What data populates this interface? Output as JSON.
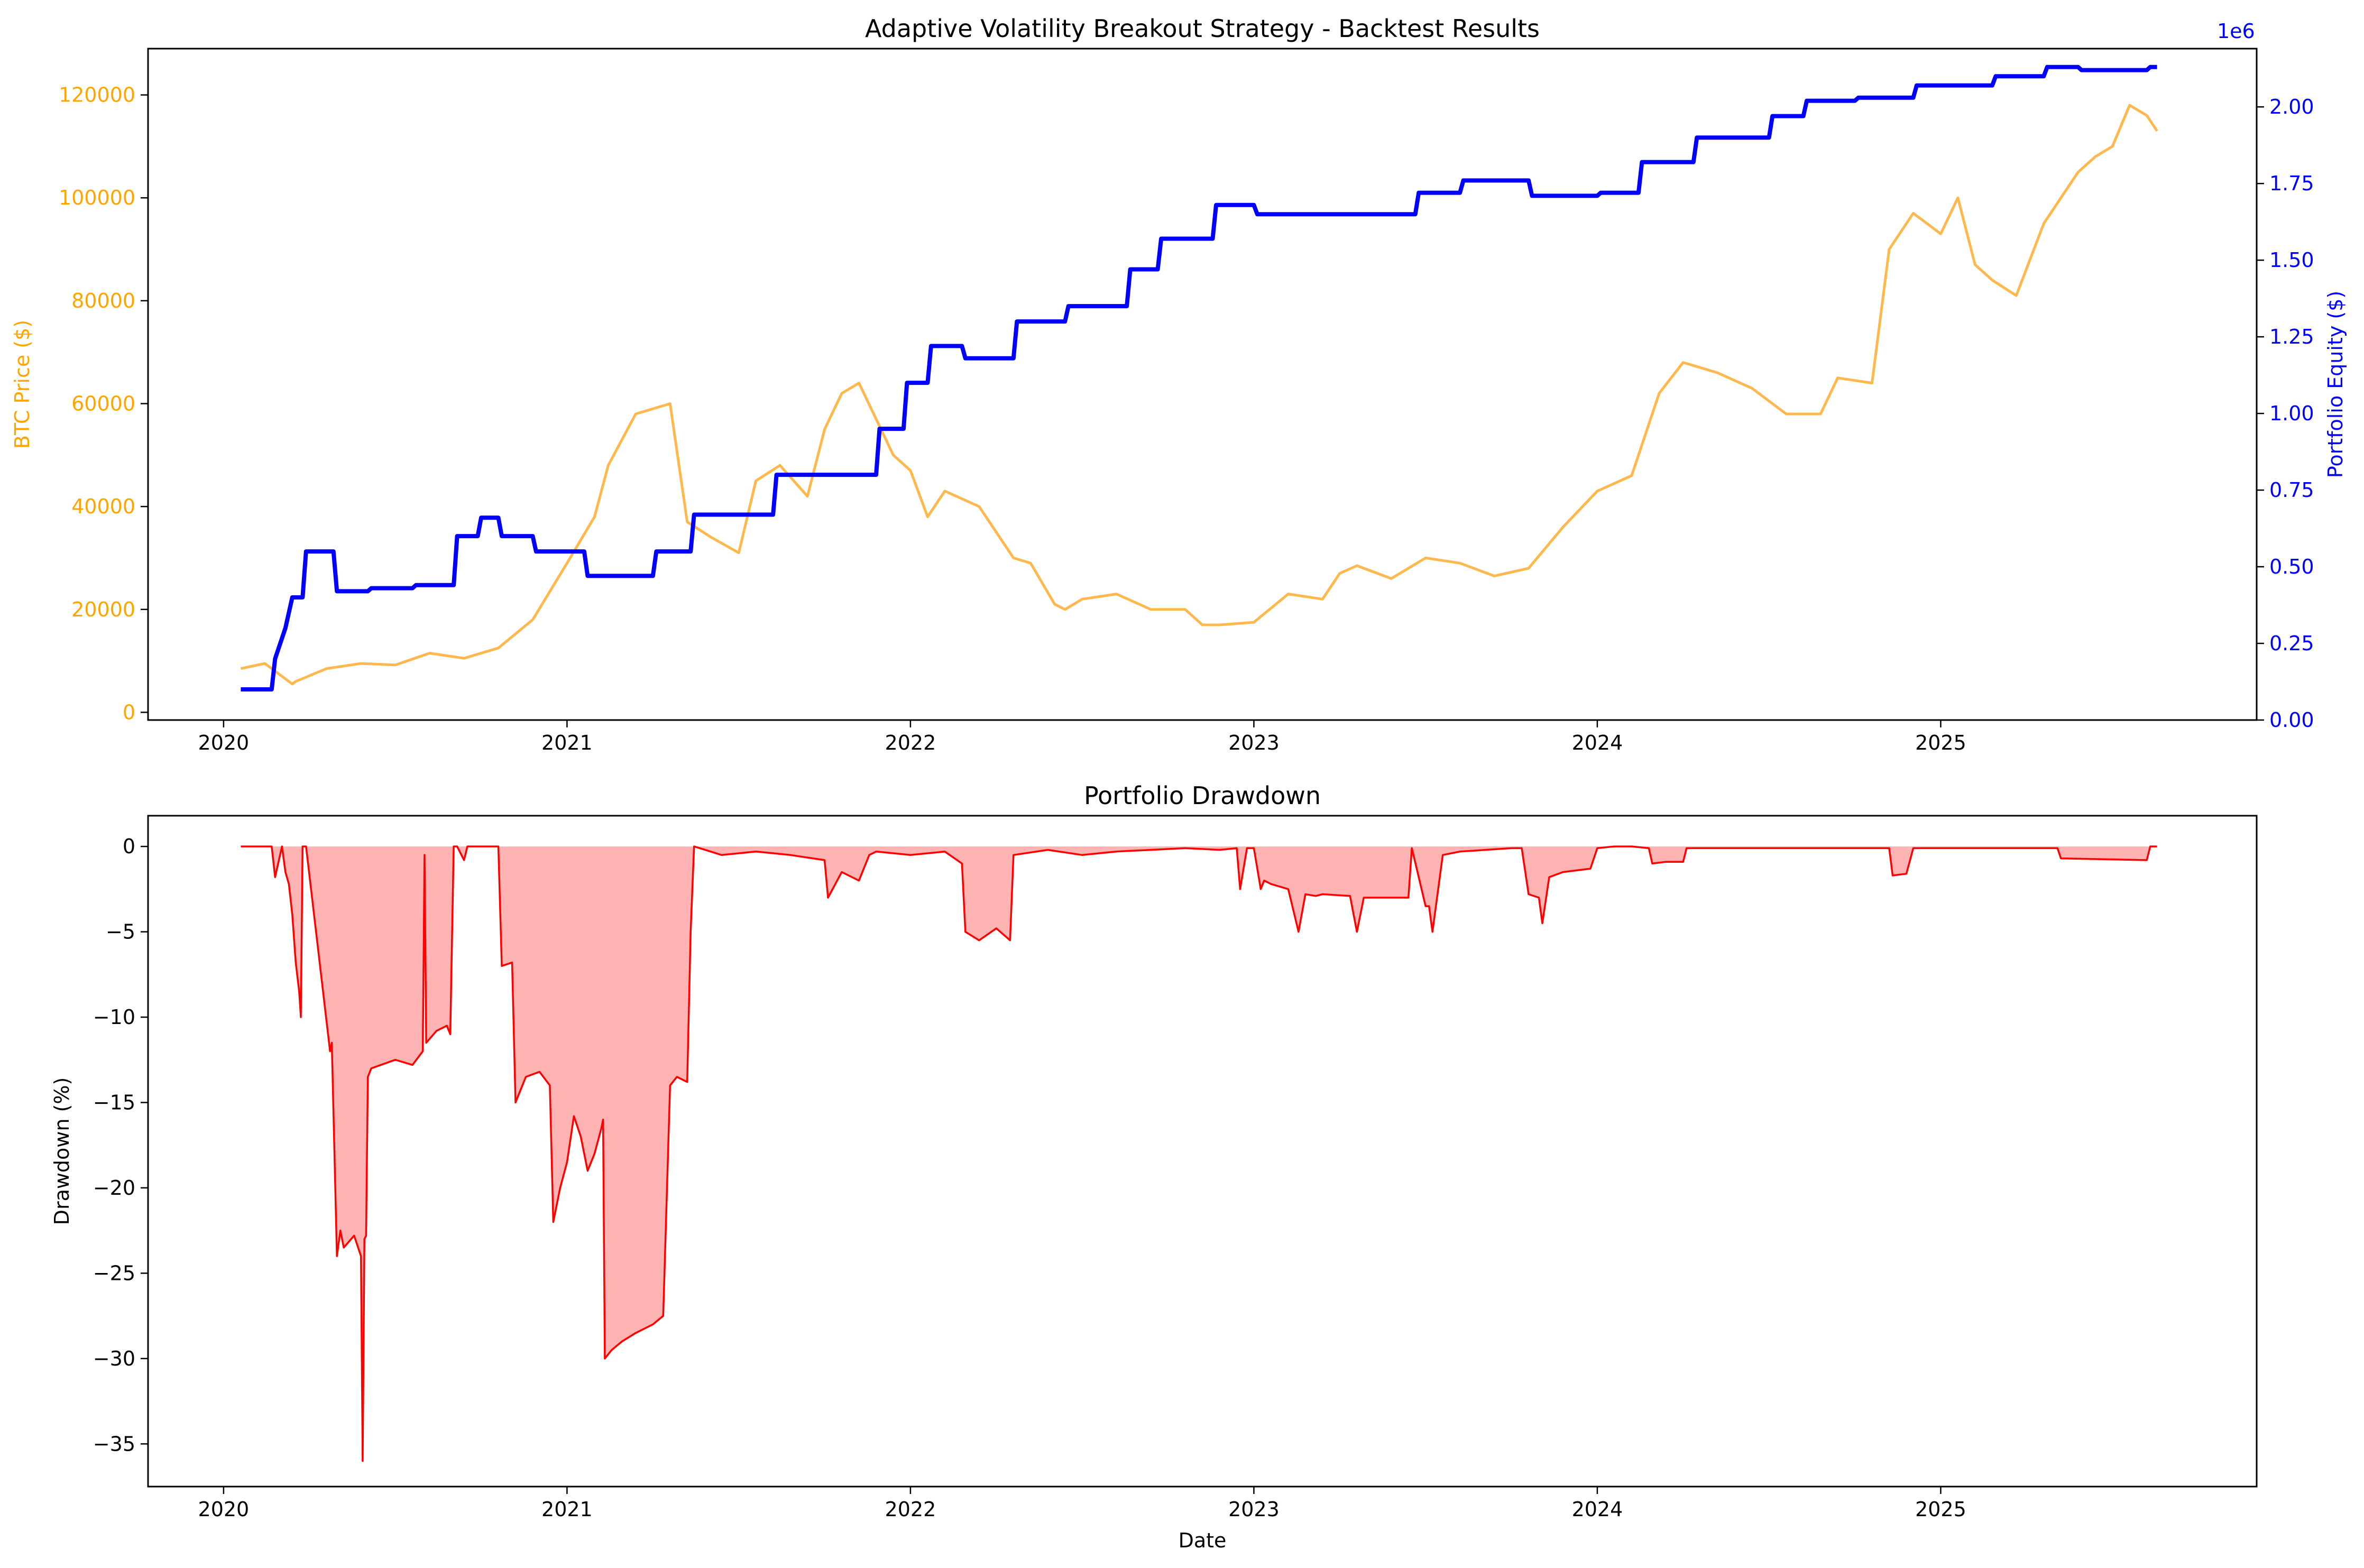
{
  "chart_data": [
    {
      "type": "line",
      "title": "Adaptive Volatility Breakout Strategy - Backtest Results",
      "xlabel": "",
      "x_ticks": [
        "2020",
        "2021",
        "2022",
        "2023",
        "2024",
        "2025"
      ],
      "x_range": [
        2019.78,
        2025.92
      ],
      "y_left": {
        "label": "BTC Price ($)",
        "color": "#ffa500",
        "ylim": [
          -1500,
          129000
        ],
        "ticks": [
          0,
          20000,
          40000,
          60000,
          80000,
          100000,
          120000
        ],
        "tick_labels": [
          "0",
          "20000",
          "40000",
          "60000",
          "80000",
          "100000",
          "120000"
        ]
      },
      "y_right": {
        "label": "Portfolio Equity ($)",
        "color": "#0000ff",
        "offset_text": "1e6",
        "ylim": [
          0,
          2.19
        ],
        "ticks": [
          0.0,
          0.25,
          0.5,
          0.75,
          1.0,
          1.25,
          1.5,
          1.75,
          2.0
        ],
        "tick_labels": [
          "0.00",
          "0.25",
          "0.50",
          "0.75",
          "1.00",
          "1.25",
          "1.50",
          "1.75",
          "2.00"
        ]
      },
      "series": [
        {
          "axis": "left",
          "color": "#ffb84d",
          "x": [
            2020.05,
            2020.12,
            2020.2,
            2020.21,
            2020.3,
            2020.4,
            2020.5,
            2020.6,
            2020.7,
            2020.8,
            2020.9,
            2021.0,
            2021.08,
            2021.12,
            2021.2,
            2021.3,
            2021.35,
            2021.42,
            2021.5,
            2021.55,
            2021.62,
            2021.7,
            2021.75,
            2021.8,
            2021.85,
            2021.9,
            2021.95,
            2022.0,
            2022.05,
            2022.1,
            2022.2,
            2022.3,
            2022.35,
            2022.42,
            2022.45,
            2022.5,
            2022.6,
            2022.7,
            2022.8,
            2022.85,
            2022.9,
            2023.0,
            2023.1,
            2023.2,
            2023.25,
            2023.3,
            2023.4,
            2023.5,
            2023.55,
            2023.6,
            2023.7,
            2023.8,
            2023.9,
            2024.0,
            2024.1,
            2024.18,
            2024.25,
            2024.35,
            2024.45,
            2024.55,
            2024.65,
            2024.7,
            2024.8,
            2024.85,
            2024.92,
            2025.0,
            2025.05,
            2025.1,
            2025.15,
            2025.22,
            2025.3,
            2025.35,
            2025.4,
            2025.45,
            2025.5,
            2025.55,
            2025.6,
            2025.63
          ],
          "y": [
            8500,
            9500,
            5500,
            6000,
            8500,
            9500,
            9200,
            11500,
            10500,
            12500,
            18000,
            29000,
            38000,
            48000,
            58000,
            60000,
            37000,
            34000,
            31000,
            45000,
            48000,
            42000,
            55000,
            62000,
            64000,
            57000,
            50000,
            47000,
            38000,
            43000,
            40000,
            30000,
            29000,
            21000,
            20000,
            22000,
            23000,
            20000,
            20000,
            17000,
            17000,
            17500,
            23000,
            22000,
            27000,
            28500,
            26000,
            30000,
            29500,
            29000,
            26500,
            28000,
            36000,
            43000,
            46000,
            62000,
            68000,
            66000,
            63000,
            58000,
            58000,
            65000,
            64000,
            90000,
            97000,
            93000,
            100000,
            87000,
            84000,
            81000,
            95000,
            100000,
            105000,
            108000,
            110000,
            118000,
            116000,
            113000
          ]
        },
        {
          "axis": "right",
          "color": "#0000ff",
          "x": [
            2020.05,
            2020.14,
            2020.15,
            2020.18,
            2020.2,
            2020.23,
            2020.24,
            2020.32,
            2020.33,
            2020.42,
            2020.43,
            2020.55,
            2020.56,
            2020.67,
            2020.68,
            2020.74,
            2020.75,
            2020.8,
            2020.81,
            2020.9,
            2020.91,
            2021.05,
            2021.06,
            2021.25,
            2021.26,
            2021.36,
            2021.37,
            2021.6,
            2021.61,
            2021.9,
            2021.91,
            2021.98,
            2021.99,
            2022.05,
            2022.06,
            2022.15,
            2022.16,
            2022.3,
            2022.31,
            2022.45,
            2022.46,
            2022.63,
            2022.64,
            2022.72,
            2022.73,
            2022.88,
            2022.89,
            2023.0,
            2023.01,
            2023.15,
            2023.16,
            2023.47,
            2023.48,
            2023.6,
            2023.61,
            2023.8,
            2023.81,
            2024.0,
            2024.01,
            2024.12,
            2024.13,
            2024.28,
            2024.29,
            2024.5,
            2024.51,
            2024.6,
            2024.61,
            2024.75,
            2024.76,
            2024.92,
            2024.93,
            2025.15,
            2025.16,
            2025.3,
            2025.31,
            2025.4,
            2025.41,
            2025.6,
            2025.61,
            2025.63
          ],
          "y": [
            0.1,
            0.1,
            0.2,
            0.3,
            0.4,
            0.4,
            0.55,
            0.55,
            0.42,
            0.42,
            0.43,
            0.43,
            0.44,
            0.44,
            0.6,
            0.6,
            0.66,
            0.66,
            0.6,
            0.6,
            0.55,
            0.55,
            0.47,
            0.47,
            0.55,
            0.55,
            0.67,
            0.67,
            0.8,
            0.8,
            0.95,
            0.95,
            1.1,
            1.1,
            1.22,
            1.22,
            1.18,
            1.18,
            1.3,
            1.3,
            1.35,
            1.35,
            1.47,
            1.47,
            1.57,
            1.57,
            1.68,
            1.68,
            1.65,
            1.65,
            1.65,
            1.65,
            1.72,
            1.72,
            1.76,
            1.76,
            1.71,
            1.71,
            1.72,
            1.72,
            1.82,
            1.82,
            1.9,
            1.9,
            1.97,
            1.97,
            2.02,
            2.02,
            2.03,
            2.03,
            2.07,
            2.07,
            2.1,
            2.1,
            2.13,
            2.13,
            2.12,
            2.12,
            2.13,
            2.13
          ]
        }
      ]
    },
    {
      "type": "area",
      "title": "Portfolio Drawdown",
      "xlabel": "Date",
      "ylabel": "Drawdown (%)",
      "x_ticks": [
        "2020",
        "2021",
        "2022",
        "2023",
        "2024",
        "2025"
      ],
      "x_range": [
        2019.78,
        2025.92
      ],
      "ylim": [
        -37.5,
        1.8
      ],
      "y_ticks": [
        0,
        -5,
        -10,
        -15,
        -20,
        -25,
        -30,
        -35
      ],
      "y_tick_labels": [
        "0",
        "−5",
        "−10",
        "−15",
        "−20",
        "−25",
        "−30",
        "−35"
      ],
      "line_color": "#ff0000",
      "fill_color": "#ffb3b3",
      "x": [
        2020.05,
        2020.14,
        2020.15,
        2020.17,
        2020.18,
        2020.19,
        2020.2,
        2020.21,
        2020.22,
        2020.225,
        2020.23,
        2020.24,
        2020.31,
        2020.315,
        2020.33,
        2020.34,
        2020.35,
        2020.38,
        2020.4,
        2020.405,
        2020.41,
        2020.415,
        2020.42,
        2020.43,
        2020.5,
        2020.55,
        2020.58,
        2020.585,
        2020.59,
        2020.62,
        2020.65,
        2020.66,
        2020.67,
        2020.68,
        2020.7,
        2020.71,
        2020.72,
        2020.8,
        2020.81,
        2020.84,
        2020.85,
        2020.86,
        2020.88,
        2020.92,
        2020.95,
        2020.96,
        2020.98,
        2021.0,
        2021.02,
        2021.04,
        2021.06,
        2021.08,
        2021.1,
        2021.105,
        2021.11,
        2021.13,
        2021.16,
        2021.2,
        2021.25,
        2021.28,
        2021.3,
        2021.32,
        2021.35,
        2021.36,
        2021.37,
        2021.45,
        2021.55,
        2021.65,
        2021.75,
        2021.76,
        2021.8,
        2021.85,
        2021.88,
        2021.9,
        2022.0,
        2022.1,
        2022.15,
        2022.16,
        2022.2,
        2022.25,
        2022.29,
        2022.3,
        2022.4,
        2022.5,
        2022.6,
        2022.7,
        2022.8,
        2022.9,
        2022.95,
        2022.96,
        2022.98,
        2023.0,
        2023.02,
        2023.03,
        2023.05,
        2023.1,
        2023.13,
        2023.15,
        2023.18,
        2023.2,
        2023.28,
        2023.3,
        2023.32,
        2023.42,
        2023.45,
        2023.46,
        2023.5,
        2023.51,
        2023.52,
        2023.55,
        2023.6,
        2023.75,
        2023.78,
        2023.8,
        2023.83,
        2023.84,
        2023.86,
        2023.9,
        2023.98,
        2024.0,
        2024.05,
        2024.1,
        2024.15,
        2024.16,
        2024.2,
        2024.25,
        2024.26,
        2024.4,
        2024.6,
        2024.85,
        2024.86,
        2024.9,
        2024.92,
        2024.95,
        2025.2,
        2025.34,
        2025.35,
        2025.6,
        2025.61,
        2025.63
      ],
      "y": [
        0,
        0,
        -1.8,
        0,
        -1.5,
        -2.2,
        -4.0,
        -6.8,
        -8.5,
        -10.0,
        0,
        0,
        -12.0,
        -11.5,
        -24.0,
        -22.5,
        -23.5,
        -22.8,
        -24.0,
        -36.0,
        -23.0,
        -22.8,
        -13.5,
        -13.0,
        -12.5,
        -12.8,
        -12.0,
        -0.5,
        -11.5,
        -10.8,
        -10.5,
        -11.0,
        0,
        0,
        -0.8,
        0,
        0,
        0,
        -7.0,
        -6.8,
        -15.0,
        -14.5,
        -13.5,
        -13.2,
        -14.0,
        -22.0,
        -20.0,
        -18.5,
        -15.8,
        -17.0,
        -19.0,
        -18.0,
        -16.5,
        -16.0,
        -30.0,
        -29.5,
        -29.0,
        -28.5,
        -28.0,
        -27.5,
        -14.0,
        -13.5,
        -13.8,
        -5.0,
        0,
        -0.5,
        -0.3,
        -0.5,
        -0.8,
        -3.0,
        -1.5,
        -2.0,
        -0.5,
        -0.3,
        -0.5,
        -0.3,
        -1.0,
        -5.0,
        -5.5,
        -4.8,
        -5.5,
        -0.5,
        -0.2,
        -0.5,
        -0.3,
        -0.2,
        -0.1,
        -0.2,
        -0.1,
        -2.5,
        -0.1,
        -0.1,
        -2.5,
        -2.0,
        -2.2,
        -2.5,
        -5.0,
        -2.8,
        -2.9,
        -2.8,
        -2.9,
        -5.0,
        -3.0,
        -3.0,
        -3.0,
        -0.1,
        -3.5,
        -3.5,
        -5.0,
        -0.5,
        -0.3,
        -0.1,
        -0.1,
        -2.8,
        -3.0,
        -4.5,
        -1.8,
        -1.5,
        -1.3,
        -0.1,
        0,
        0,
        -0.1,
        -1.0,
        -0.9,
        -0.9,
        -0.1,
        -0.1,
        -0.1,
        -0.1,
        -1.7,
        -1.6,
        -0.1,
        -0.1,
        -0.1,
        -0.1,
        -0.7,
        -0.8,
        0,
        0
      ]
    }
  ]
}
